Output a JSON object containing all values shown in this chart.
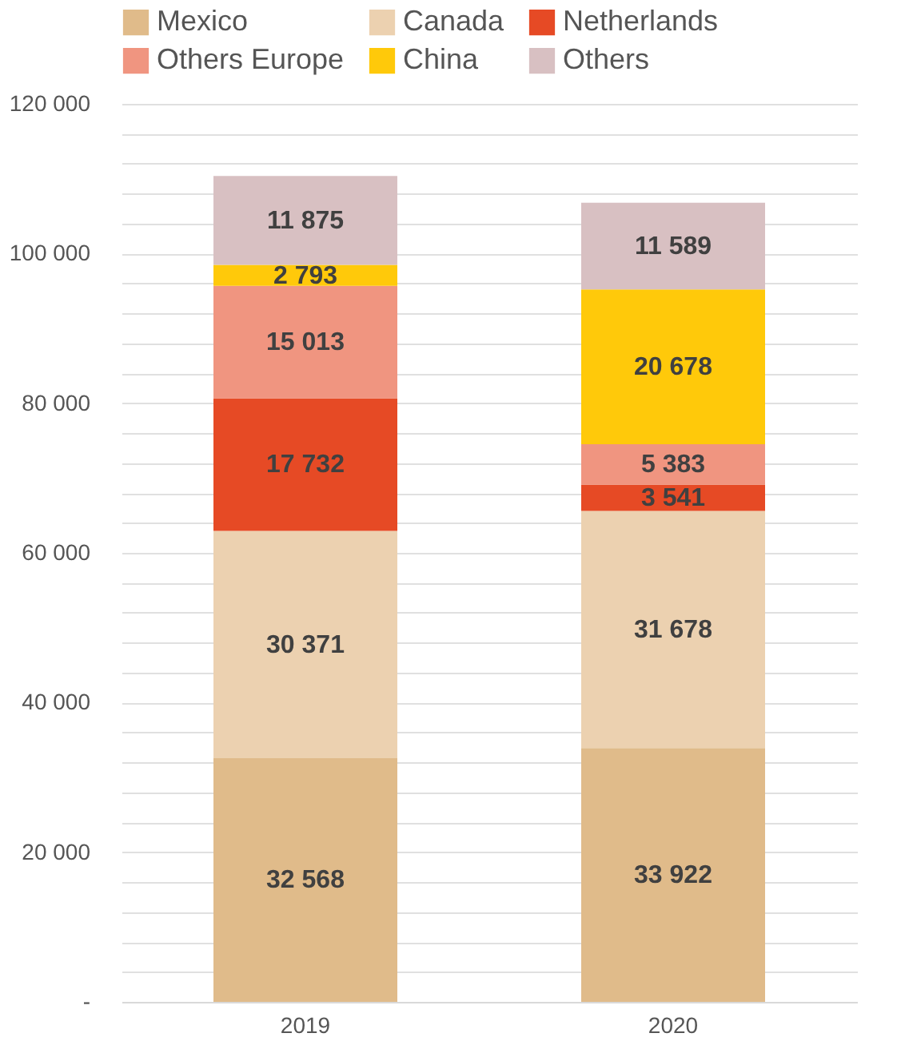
{
  "chart_data": {
    "type": "bar",
    "stacked": true,
    "categories": [
      "2019",
      "2020"
    ],
    "series": [
      {
        "name": "Mexico",
        "color": "#e0bb8a",
        "values": [
          32568,
          33922
        ],
        "value_labels": [
          "32 568",
          "33 922"
        ]
      },
      {
        "name": "Canada",
        "color": "#ecd1b0",
        "values": [
          30371,
          31678
        ],
        "value_labels": [
          "30 371",
          "31 678"
        ]
      },
      {
        "name": "Netherlands",
        "color": "#e64a25",
        "values": [
          17732,
          3541
        ],
        "value_labels": [
          "17 732",
          "3 541"
        ]
      },
      {
        "name": "Others Europe",
        "color": "#f09580",
        "values": [
          15013,
          5383
        ],
        "value_labels": [
          "15 013",
          "5 383"
        ]
      },
      {
        "name": "China",
        "color": "#ffc90a",
        "values": [
          2793,
          20678
        ],
        "value_labels": [
          "2 793",
          "20 678"
        ]
      },
      {
        "name": "Others",
        "color": "#d8c0c2",
        "values": [
          11875,
          11589
        ],
        "value_labels": [
          "11 875",
          "11 589"
        ]
      }
    ],
    "ylim": [
      0,
      120000
    ],
    "yticks": [
      {
        "value": 0,
        "label": "-"
      },
      {
        "value": 4000,
        "label": null
      },
      {
        "value": 8000,
        "label": null
      },
      {
        "value": 12000,
        "label": null
      },
      {
        "value": 16000,
        "label": null
      },
      {
        "value": 20000,
        "label": "20 000"
      },
      {
        "value": 24000,
        "label": null
      },
      {
        "value": 28000,
        "label": null
      },
      {
        "value": 32000,
        "label": null
      },
      {
        "value": 36000,
        "label": null
      },
      {
        "value": 40000,
        "label": "40 000"
      },
      {
        "value": 44000,
        "label": null
      },
      {
        "value": 48000,
        "label": null
      },
      {
        "value": 52000,
        "label": null
      },
      {
        "value": 56000,
        "label": null
      },
      {
        "value": 60000,
        "label": "60 000"
      },
      {
        "value": 64000,
        "label": null
      },
      {
        "value": 68000,
        "label": null
      },
      {
        "value": 72000,
        "label": null
      },
      {
        "value": 76000,
        "label": null
      },
      {
        "value": 80000,
        "label": "80 000"
      },
      {
        "value": 84000,
        "label": null
      },
      {
        "value": 88000,
        "label": null
      },
      {
        "value": 92000,
        "label": null
      },
      {
        "value": 96000,
        "label": null
      },
      {
        "value": 100000,
        "label": "100 000"
      },
      {
        "value": 104000,
        "label": null
      },
      {
        "value": 108000,
        "label": null
      },
      {
        "value": 112000,
        "label": null
      },
      {
        "value": 116000,
        "label": null
      },
      {
        "value": 120000,
        "label": "120 000"
      }
    ],
    "grid": "y",
    "legend": "top"
  }
}
